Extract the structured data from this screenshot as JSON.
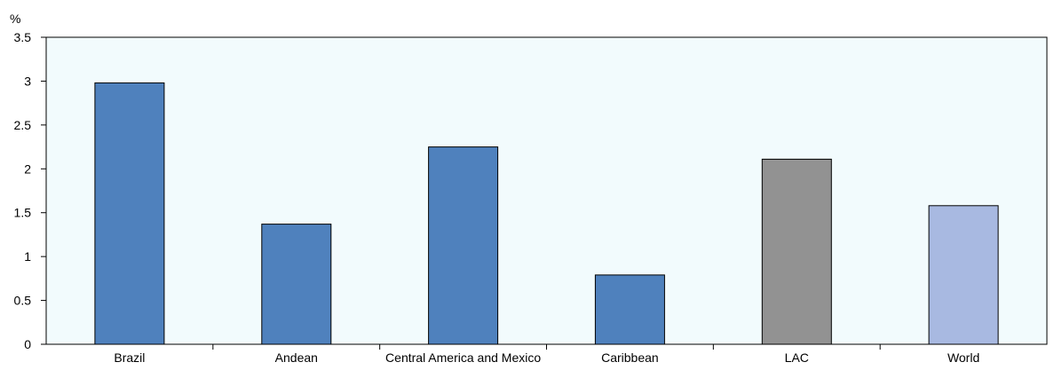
{
  "chart_data": {
    "type": "bar",
    "ylabel": "%",
    "ylim": [
      0,
      3.5
    ],
    "yticks": [
      "0",
      "0.5",
      "1",
      "1.5",
      "2",
      "2.5",
      "3",
      "3.5"
    ],
    "grid": false,
    "categories": [
      "Brazil",
      "Andean",
      "Central America and Mexico",
      "Caribbean",
      "LAC",
      "World"
    ],
    "values": [
      2.98,
      1.37,
      2.25,
      0.79,
      2.11,
      1.58
    ],
    "colors": [
      "#4f81bd",
      "#4f81bd",
      "#4f81bd",
      "#4f81bd",
      "#929292",
      "#a8b9e1"
    ],
    "plot_background": "#f2fbfd"
  }
}
